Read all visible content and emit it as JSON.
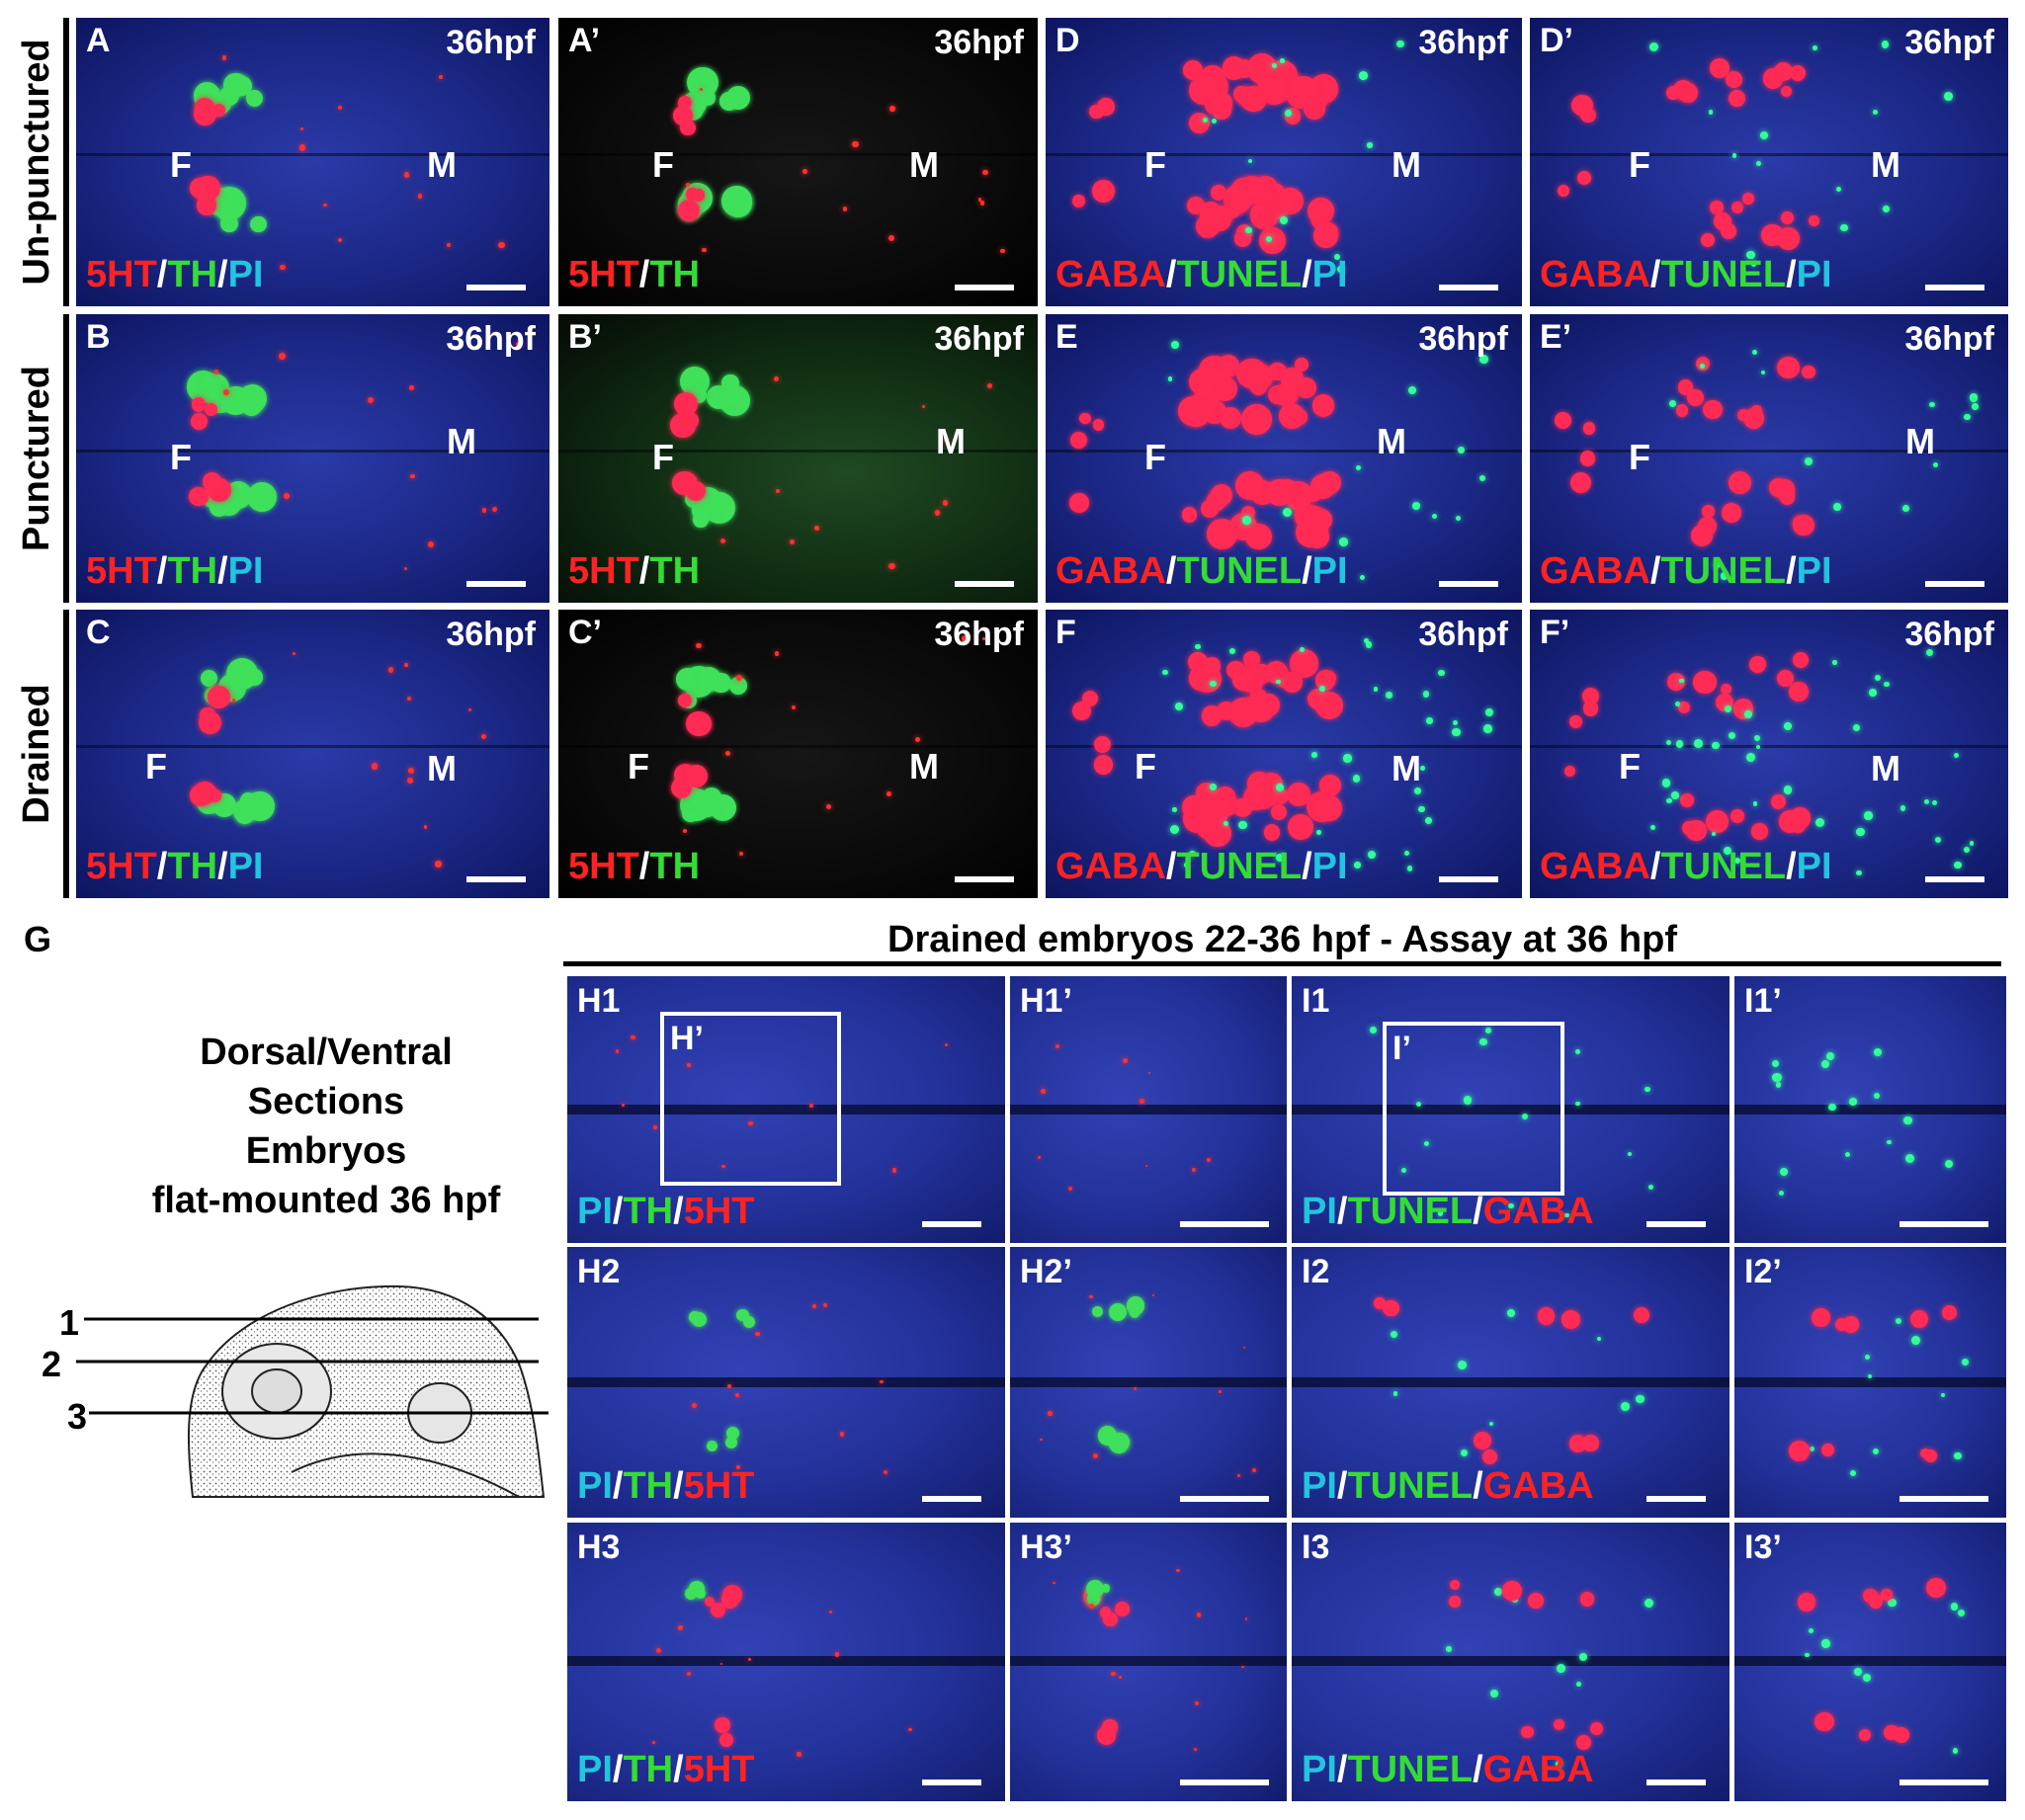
{
  "row_labels": [
    "Un-punctured",
    "Punctured",
    "Drained"
  ],
  "panels_top": [
    {
      "label": "A",
      "stage": "36hpf",
      "f": "F",
      "m": "M",
      "stain": [
        "5HT",
        "/",
        "TH",
        "/",
        "PI"
      ]
    },
    {
      "label": "A’",
      "stage": "36hpf",
      "f": "F",
      "m": "M",
      "stain": [
        "5HT",
        "/",
        "TH"
      ]
    },
    {
      "label": "D",
      "stage": "36hpf",
      "f": "F",
      "m": "M",
      "stain": [
        "GABA",
        "/",
        "TUNEL",
        "/",
        "PI"
      ]
    },
    {
      "label": "D’",
      "stage": "36hpf",
      "f": "F",
      "m": "M",
      "stain": [
        "GABA",
        "/",
        "TUNEL",
        "/",
        "PI"
      ]
    },
    {
      "label": "B",
      "stage": "36hpf",
      "f": "F",
      "m": "M",
      "stain": [
        "5HT",
        "/",
        "TH",
        "/",
        "PI"
      ]
    },
    {
      "label": "B’",
      "stage": "36hpf",
      "f": "F",
      "m": "M",
      "stain": [
        "5HT",
        "/",
        "TH"
      ]
    },
    {
      "label": "E",
      "stage": "36hpf",
      "f": "F",
      "m": "M",
      "stain": [
        "GABA",
        "/",
        "TUNEL",
        "/",
        "PI"
      ]
    },
    {
      "label": "E’",
      "stage": "36hpf",
      "f": "F",
      "m": "M",
      "stain": [
        "GABA",
        "/",
        "TUNEL",
        "/",
        "PI"
      ]
    },
    {
      "label": "C",
      "stage": "36hpf",
      "f": "F",
      "m": "M",
      "stain": [
        "5HT",
        "/",
        "TH",
        "/",
        "PI"
      ]
    },
    {
      "label": "C’",
      "stage": "36hpf",
      "f": "F",
      "m": "M",
      "stain": [
        "5HT",
        "/",
        "TH"
      ]
    },
    {
      "label": "F",
      "stage": "36hpf",
      "f": "F",
      "m": "M",
      "stain": [
        "GABA",
        "/",
        "TUNEL",
        "/",
        "PI"
      ]
    },
    {
      "label": "F’",
      "stage": "36hpf",
      "f": "F",
      "m": "M",
      "stain": [
        "GABA",
        "/",
        "TUNEL",
        "/",
        "PI"
      ]
    }
  ],
  "panel_g": {
    "label": "G",
    "lines": [
      "Dorsal/Ventral",
      "Sections",
      "Embryos",
      "flat-mounted 36 hpf"
    ],
    "section_numbers": [
      "1",
      "2",
      "3"
    ]
  },
  "heading": "Drained embryos 22-36 hpf - Assay at 36 hpf",
  "panels_bottom": [
    {
      "label": "H1",
      "box": "H’",
      "stain": [
        "PI",
        "/",
        "TH",
        "/",
        "5HT"
      ]
    },
    {
      "label": "H1’",
      "stain": []
    },
    {
      "label": "I1",
      "box": "I’",
      "stain": [
        "PI",
        "/",
        "TUNEL",
        "/",
        "GABA"
      ]
    },
    {
      "label": "I1’",
      "stain": []
    },
    {
      "label": "H2",
      "stain": [
        "PI",
        "/",
        "TH",
        "/",
        "5HT"
      ]
    },
    {
      "label": "H2’",
      "stain": []
    },
    {
      "label": "I2",
      "stain": [
        "PI",
        "/",
        "TUNEL",
        "/",
        "GABA"
      ]
    },
    {
      "label": "I2’",
      "stain": []
    },
    {
      "label": "H3",
      "stain": [
        "PI",
        "/",
        "TH",
        "/",
        "5HT"
      ]
    },
    {
      "label": "H3’",
      "stain": []
    },
    {
      "label": "I3",
      "stain": [
        "PI",
        "/",
        "TUNEL",
        "/",
        "GABA"
      ]
    },
    {
      "label": "I3’",
      "stain": []
    }
  ],
  "colors": {
    "red": "#ff2222",
    "green": "#33dd33",
    "cyan": "#22c4e0",
    "blue_bg": "#1c2887"
  }
}
